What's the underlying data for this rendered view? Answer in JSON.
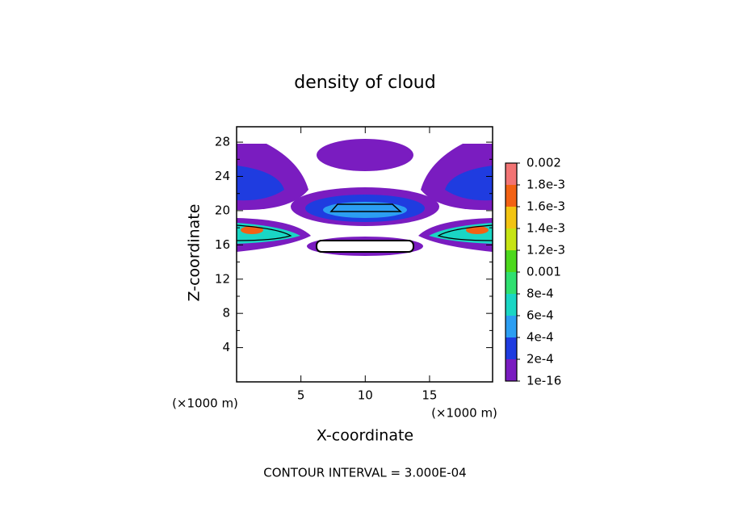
{
  "chart_data": {
    "type": "contour",
    "title": "density of cloud",
    "xlabel": "X-coordinate",
    "ylabel": "Z-coordinate",
    "x_unit_labels": [
      "(×1000 m)",
      "(×1000 m)"
    ],
    "annotation": "CONTOUR INTERVAL = 3.000E-04",
    "xlim": [
      0,
      19.9
    ],
    "xticks": [
      5,
      10,
      15
    ],
    "ylim": [
      0,
      29.8
    ],
    "yticks": [
      4,
      8,
      12,
      16,
      20,
      24,
      28
    ],
    "colorbar": {
      "ticks": [
        {
          "value": 1e-16,
          "label": "1e-16"
        },
        {
          "value": 0.0002,
          "label": "2e-4"
        },
        {
          "value": 0.0004,
          "label": "4e-4"
        },
        {
          "value": 0.0006,
          "label": "6e-4"
        },
        {
          "value": 0.0008,
          "label": "8e-4"
        },
        0.001,
        {
          "value": 0.0012,
          "label": "1.2e-3"
        },
        {
          "value": 0.0014,
          "label": "1.4e-3"
        },
        {
          "value": 0.0016,
          "label": "1.6e-3"
        },
        {
          "value": 0.0018,
          "label": "1.8e-3"
        },
        0.002
      ],
      "colors": [
        "#7a1cc0",
        "#1f3ce0",
        "#2c9ef2",
        "#1ad6c4",
        "#2fe070",
        "#4cd81c",
        "#c6e414",
        "#f2c412",
        "#f26214",
        "#f27474"
      ]
    }
  }
}
